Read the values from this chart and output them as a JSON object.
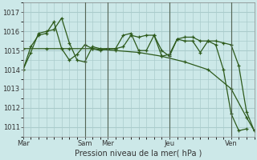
{
  "bg_color": "#cce8e8",
  "grid_color": "#aacccc",
  "line_color": "#2d5a1b",
  "xlabel": "Pression niveau de la mer( hPa )",
  "ylim": [
    1010.5,
    1017.3
  ],
  "yticks": [
    1011,
    1012,
    1013,
    1014,
    1015,
    1016,
    1017
  ],
  "xlim": [
    0,
    180
  ],
  "x_day_labels": [
    "Mar",
    "Sam",
    "Mer",
    "Jeu",
    "Ven"
  ],
  "x_day_positions": [
    0,
    48,
    66,
    114,
    162
  ],
  "vlines_x": [
    48,
    66,
    114,
    162
  ],
  "series1": {
    "x": [
      0,
      6,
      12,
      18,
      24,
      30,
      36,
      42,
      48,
      54,
      60,
      66,
      72,
      78,
      84,
      90,
      96,
      102,
      108,
      114,
      120,
      126,
      132,
      138,
      144,
      150,
      156,
      162,
      168,
      174,
      180
    ],
    "y": [
      1014.0,
      1014.9,
      1015.9,
      1016.0,
      1016.1,
      1016.7,
      1015.4,
      1014.5,
      1014.4,
      1015.2,
      1015.1,
      1015.1,
      1015.1,
      1015.2,
      1015.8,
      1015.7,
      1015.8,
      1015.8,
      1015.0,
      1014.7,
      1015.6,
      1015.7,
      1015.7,
      1015.5,
      1015.5,
      1015.5,
      1015.4,
      1015.3,
      1014.2,
      1011.8,
      1010.8
    ]
  },
  "series2": {
    "x": [
      0,
      6,
      12,
      18,
      24,
      30,
      36,
      42,
      48,
      54,
      60,
      66,
      72,
      78,
      84,
      90,
      96,
      102,
      108,
      114,
      120,
      126,
      132,
      138,
      144,
      150,
      156,
      162,
      168,
      174
    ],
    "y": [
      1014.0,
      1015.2,
      1015.8,
      1015.9,
      1016.5,
      1015.1,
      1014.5,
      1014.8,
      1015.3,
      1015.1,
      1015.0,
      1015.1,
      1015.1,
      1015.8,
      1015.9,
      1015.0,
      1015.0,
      1015.8,
      1014.7,
      1014.8,
      1015.6,
      1015.5,
      1015.5,
      1014.9,
      1015.5,
      1015.3,
      1014.0,
      1011.7,
      1010.8,
      1010.9
    ]
  },
  "series3": {
    "x": [
      0,
      18,
      36,
      54,
      72,
      90,
      108,
      126,
      144,
      162,
      174,
      180
    ],
    "y": [
      1015.1,
      1015.1,
      1015.1,
      1015.1,
      1015.0,
      1014.9,
      1014.7,
      1014.4,
      1014.0,
      1013.0,
      1011.5,
      1010.8
    ]
  }
}
